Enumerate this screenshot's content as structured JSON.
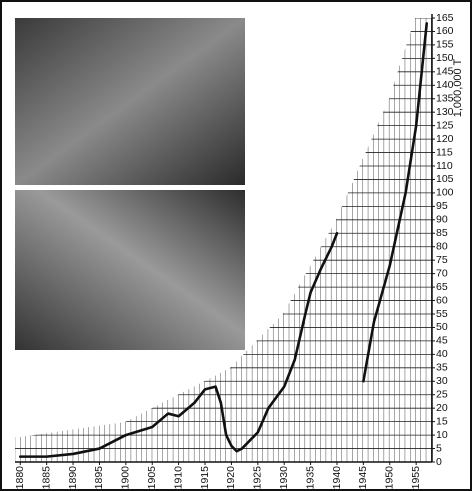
{
  "chart_data": {
    "type": "line",
    "y_label": "1,000,000 T",
    "xlim": [
      1879,
      1958
    ],
    "xticks": [
      1880,
      1885,
      1890,
      1895,
      1900,
      1905,
      1910,
      1915,
      1920,
      1925,
      1930,
      1935,
      1940,
      1945,
      1950,
      1955
    ],
    "ylim": [
      0,
      165
    ],
    "yticks": [
      0,
      5,
      10,
      15,
      20,
      25,
      30,
      35,
      40,
      45,
      50,
      55,
      60,
      65,
      70,
      75,
      80,
      85,
      90,
      95,
      100,
      105,
      110,
      115,
      120,
      125,
      130,
      135,
      140,
      145,
      150,
      155,
      160,
      165
    ],
    "grid": true,
    "series": [
      {
        "color": "#111111",
        "x": [
          1880,
          1885,
          1890,
          1895,
          1900,
          1905,
          1908,
          1910,
          1913,
          1915,
          1917,
          1918,
          1919,
          1920,
          1921,
          1922,
          1925,
          1927,
          1930,
          1932,
          1934,
          1935,
          1937,
          1939,
          1940
        ],
        "values": [
          2,
          2,
          3,
          5,
          10,
          13,
          18,
          17,
          22,
          27,
          28,
          22,
          10,
          6,
          4,
          5,
          11,
          20,
          28,
          38,
          55,
          63,
          72,
          80,
          85
        ]
      },
      {
        "color": "#111111",
        "x": [
          1945,
          1947,
          1950,
          1953,
          1955,
          1957
        ],
        "values": [
          30,
          52,
          73,
          100,
          125,
          163
        ]
      }
    ]
  }
}
